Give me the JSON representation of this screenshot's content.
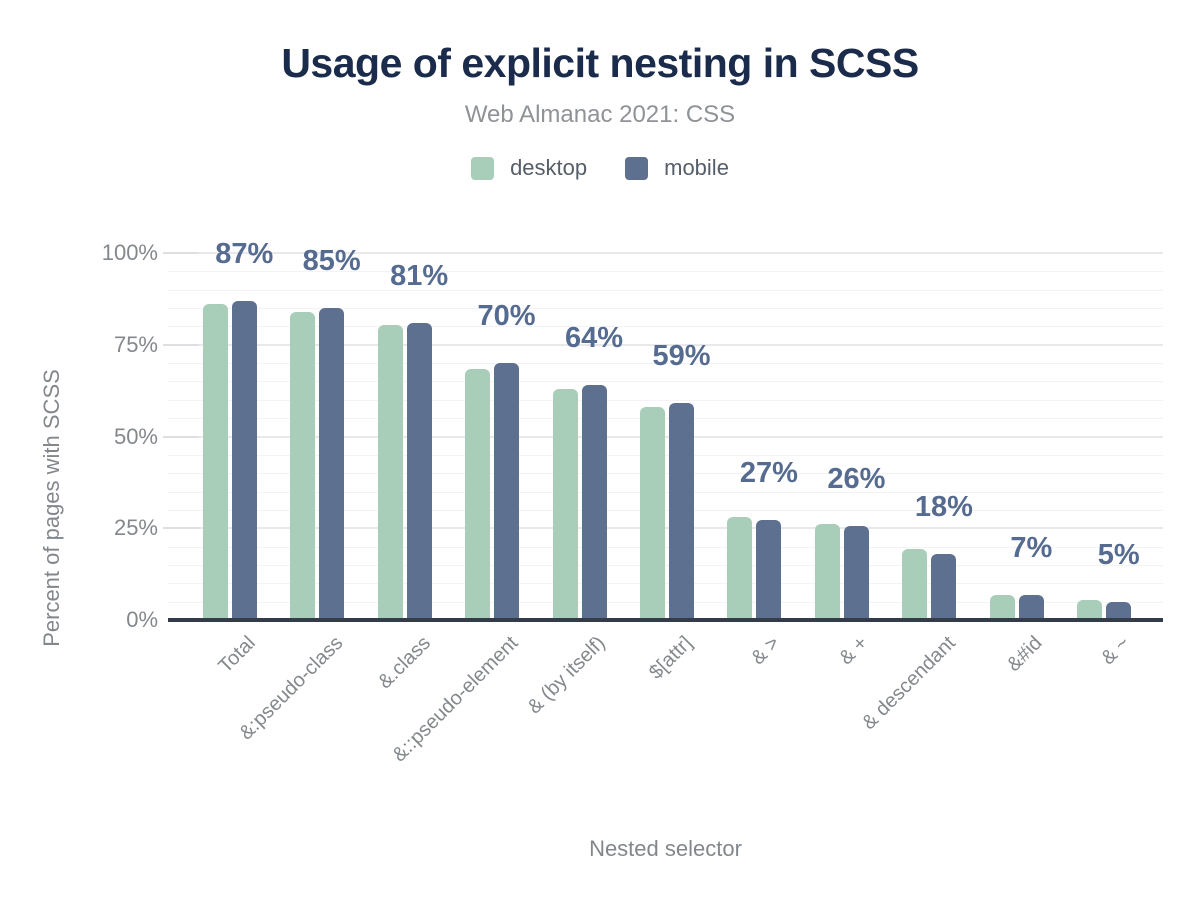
{
  "chart": {
    "title": "Usage of explicit nesting in SCSS",
    "subtitle": "Web Almanac 2021: CSS",
    "x_axis_title": "Nested selector",
    "y_axis_title": "Percent of pages with SCSS"
  },
  "legend": {
    "items": [
      {
        "label": "desktop",
        "color": "#a8cdb8"
      },
      {
        "label": "mobile",
        "color": "#5d7090"
      }
    ]
  },
  "colors": {
    "title": "#1b2b4b",
    "subtitle": "#8f9296",
    "axis_text": "#84888d",
    "axis_line": "#343c49",
    "bar_label": "#566b90",
    "desktop_bar": "#a8cdb8",
    "mobile_bar": "#5d7090",
    "background": "#ffffff"
  },
  "chart_data": {
    "type": "bar",
    "title": "Usage of explicit nesting in SCSS",
    "subtitle": "Web Almanac 2021: CSS",
    "xlabel": "Nested selector",
    "ylabel": "Percent of pages with SCSS",
    "ylim": [
      0,
      100
    ],
    "ytick_values": [
      0,
      25,
      50,
      75,
      100
    ],
    "ytick_labels": [
      "0%",
      "25%",
      "50%",
      "75%",
      "100%"
    ],
    "grid": "horizontal; faint minor lines every 5%, major lines every 25%",
    "legend_position": "top center",
    "categories": [
      "Total",
      "&:pseudo-class",
      "&.class",
      "&::pseudo-element",
      "& (by itself)",
      "$[attr]",
      "& >",
      "& +",
      "& descendant",
      "&#id",
      "& ~"
    ],
    "series": [
      {
        "name": "desktop",
        "color": "#a8cdb8",
        "values": [
          86,
          84,
          80.5,
          68.5,
          63,
          58,
          28,
          26.2,
          19.4,
          6.9,
          5.4
        ]
      },
      {
        "name": "mobile",
        "color": "#5d7090",
        "values": [
          87,
          85,
          81,
          70,
          64,
          59,
          27.2,
          25.5,
          18,
          6.8,
          4.9
        ]
      }
    ],
    "bar_labels": [
      "87%",
      "85%",
      "81%",
      "70%",
      "64%",
      "59%",
      "27%",
      "26%",
      "18%",
      "7%",
      "5%"
    ],
    "bar_label_series": "mobile"
  }
}
